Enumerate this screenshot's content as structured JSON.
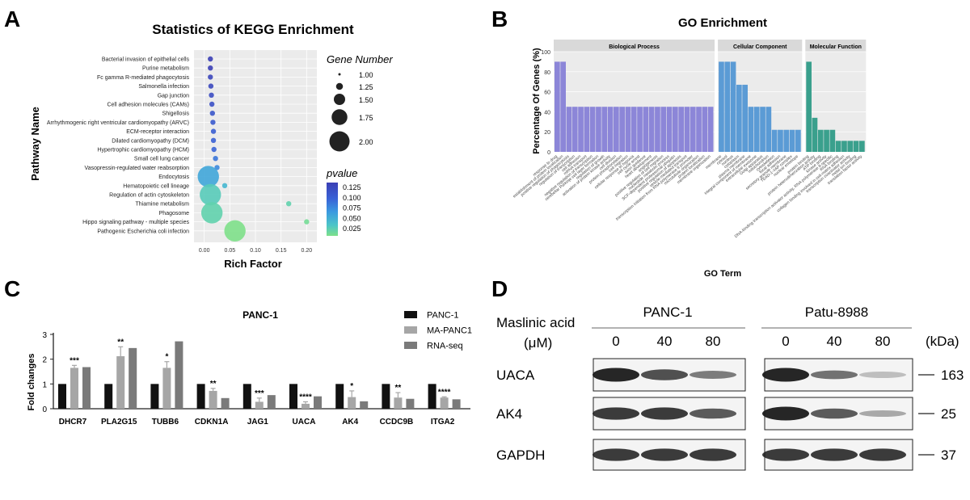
{
  "panels": {
    "a": "A",
    "b": "B",
    "c": "C",
    "d": "D"
  },
  "chart_data": [
    {
      "id": "kegg",
      "type": "scatter",
      "title": "Statistics of KEGG Enrichment",
      "xlabel": "Rich Factor",
      "ylabel": "Pathway Name",
      "xlim": [
        -0.02,
        0.22
      ],
      "xticks": [
        "0.00",
        "0.05",
        "0.10",
        "0.15",
        "0.20"
      ],
      "grid": true,
      "legend_position": "right",
      "size_legend": {
        "title": "Gene Number",
        "values": [
          1.0,
          1.25,
          1.5,
          1.75,
          2.0
        ],
        "labels": [
          "1.00",
          "1.25",
          "1.50",
          "1.75",
          "2.00"
        ]
      },
      "color_legend": {
        "title": "pvalue",
        "labels": [
          "0.125",
          "0.100",
          "0.075",
          "0.050",
          "0.025"
        ],
        "colors": [
          "#3b3fb5",
          "#3a62d6",
          "#3b9ae0",
          "#4cc5c8",
          "#7ee08a"
        ]
      },
      "pathways": [
        {
          "name": "Bacterial invasion of epithelial cells",
          "x": 0.012,
          "genes": 1,
          "p": 0.125
        },
        {
          "name": "Purine metabolism",
          "x": 0.012,
          "genes": 1,
          "p": 0.125
        },
        {
          "name": "Fc gamma R-mediated phagocytosis",
          "x": 0.012,
          "genes": 1,
          "p": 0.12
        },
        {
          "name": "Salmonella infection",
          "x": 0.013,
          "genes": 1,
          "p": 0.118
        },
        {
          "name": "Gap junction",
          "x": 0.014,
          "genes": 1,
          "p": 0.115
        },
        {
          "name": "Cell adhesion molecules (CAMs)",
          "x": 0.015,
          "genes": 1,
          "p": 0.112
        },
        {
          "name": "Shigellosis",
          "x": 0.016,
          "genes": 1,
          "p": 0.108
        },
        {
          "name": "Arrhythmogenic right ventricular cardiomyopathy (ARVC)",
          "x": 0.017,
          "genes": 1,
          "p": 0.105
        },
        {
          "name": "ECM-receptor interaction",
          "x": 0.018,
          "genes": 1,
          "p": 0.102
        },
        {
          "name": "Dilated cardiomyopathy (DCM)",
          "x": 0.018,
          "genes": 1,
          "p": 0.1
        },
        {
          "name": "Hypertrophic cardiomyopathy (HCM)",
          "x": 0.019,
          "genes": 1,
          "p": 0.098
        },
        {
          "name": "Small cell lung cancer",
          "x": 0.022,
          "genes": 1,
          "p": 0.09
        },
        {
          "name": "Vasopressin-regulated water reabsorption",
          "x": 0.025,
          "genes": 1,
          "p": 0.08
        },
        {
          "name": "Endocytosis",
          "x": 0.008,
          "genes": 2,
          "p": 0.065
        },
        {
          "name": "Hematopoietic cell lineage",
          "x": 0.04,
          "genes": 1,
          "p": 0.055
        },
        {
          "name": "Regulation of actin cytoskeleton",
          "x": 0.012,
          "genes": 2,
          "p": 0.04
        },
        {
          "name": "Thiamine metabolism",
          "x": 0.165,
          "genes": 1,
          "p": 0.035
        },
        {
          "name": "Phagosome",
          "x": 0.015,
          "genes": 2,
          "p": 0.035
        },
        {
          "name": "Hippo signaling pathway - multiple species",
          "x": 0.2,
          "genes": 1,
          "p": 0.025
        },
        {
          "name": "Pathogenic Escherichia coli infection",
          "x": 0.06,
          "genes": 2,
          "p": 0.02
        }
      ]
    },
    {
      "id": "go",
      "type": "bar",
      "title": "GO Enrichment",
      "xlabel": "GO Term",
      "ylabel": "Percentage Of Genes (%)",
      "ylim": [
        0,
        100
      ],
      "yticks": [
        "0",
        "20",
        "40",
        "60",
        "80",
        "100"
      ],
      "facets": [
        {
          "name": "Biological Process",
          "color": "#8c86d8",
          "values": [
            90,
            90,
            45,
            45,
            45,
            45,
            45,
            45,
            45,
            45,
            45,
            45,
            45,
            45,
            45,
            45,
            45,
            45,
            45,
            45,
            45,
            45,
            45,
            45,
            45,
            45,
            45
          ],
          "terms": [
            "response to drug",
            "establishment of protein localization",
            "positive regulation of phagocytosis",
            "regulation of transcription",
            "cell adhesion",
            "mRNA transport",
            "negative regulation of transcription",
            "cerebellar Purkinje cell layer formation",
            "regulation of growth",
            "activation of protein kinase activity",
            "cell division",
            "protein phosphorylation",
            "cell migration",
            "cellular response to hypoxia",
            "cell cycle arrest",
            "axon guidance",
            "heart development",
            "angiogenesis",
            "positive regulation of cell migration",
            "nucleotide metabolic process",
            "SCF-dependent proteasomal ubiquitin",
            "positive regulation of apoptosis",
            "vesicle-mediated transport",
            "transcription initiation from RNA polymerase II promoter",
            "microtubule organization",
            "protein localization",
            "membrane organization"
          ]
        },
        {
          "name": "Cellular Component",
          "color": "#5b9bd5",
          "values": [
            90,
            90,
            90,
            67,
            67,
            45,
            45,
            45,
            45,
            22,
            22,
            22,
            22,
            22
          ],
          "terms": [
            "membrane",
            "cytosol",
            "nucleus",
            "cytoplasm",
            "plasma membrane",
            "integral component of membrane",
            "extracellular exosome",
            "Golgi apparatus",
            "mitochondrion",
            "cytoskeleton",
            "focal adhesion",
            "secretory granule membrane",
            "TEAD-1-YAP complex",
            "nuclear envelope"
          ]
        },
        {
          "name": "Molecular Function",
          "color": "#3aa08d",
          "values": [
            90,
            34,
            22,
            22,
            22,
            11,
            11,
            11,
            11,
            11
          ],
          "terms": [
            "protein binding",
            "protein heterodimerization activity",
            "ATP binding",
            "kinase activity",
            "DNA-binding transcription activator activity, RNA polymerase II-specific",
            "RNA binding",
            "collagen binding involved in cell-matrix adhesion",
            "transcription coactivator activity",
            "metal ion binding",
            "translation factor activity"
          ]
        }
      ]
    },
    {
      "id": "panc1",
      "type": "bar",
      "title": "PANC-1",
      "ylabel": "Fold changes",
      "ylim": [
        0,
        3
      ],
      "yticks": [
        "0",
        "1",
        "2",
        "3"
      ],
      "categories": [
        "DHCR7",
        "PLA2G15",
        "TUBB6",
        "CDKN1A",
        "JAG1",
        "UACA",
        "AK4",
        "CCDC9B",
        "ITGA2"
      ],
      "series": [
        {
          "name": "PANC-1",
          "color": "#111111",
          "values": [
            1,
            1,
            1,
            1,
            1,
            1,
            1,
            1,
            1
          ]
        },
        {
          "name": "MA-PANC1",
          "color": "#a6a6a6",
          "values": [
            1.65,
            2.12,
            1.65,
            0.72,
            0.28,
            0.2,
            0.47,
            0.45,
            0.45
          ],
          "errors": [
            0.1,
            0.38,
            0.25,
            0.1,
            0.15,
            0.08,
            0.25,
            0.2,
            0.03
          ]
        },
        {
          "name": "RNA-seq",
          "color": "#7a7a7a",
          "values": [
            1.68,
            2.45,
            2.72,
            0.43,
            0.55,
            0.5,
            0.3,
            0.4,
            0.38
          ]
        }
      ],
      "significance": [
        "***",
        "**",
        "*",
        "**",
        "***",
        "****",
        "*",
        "**",
        "****"
      ]
    },
    {
      "id": "western",
      "type": "table",
      "treatment_label_1": "Maslinic acid",
      "treatment_label_2": "(μM)",
      "cell_lines": [
        "PANC-1",
        "Patu-8988"
      ],
      "doses": [
        "0",
        "40",
        "80",
        "0",
        "40",
        "80"
      ],
      "kda_label": "(kDa)",
      "proteins": [
        {
          "name": "UACA",
          "kda": "163",
          "intensity": [
            0.95,
            0.75,
            0.55,
            0.95,
            0.6,
            0.25
          ]
        },
        {
          "name": "AK4",
          "kda": "25",
          "intensity": [
            0.85,
            0.85,
            0.7,
            0.95,
            0.7,
            0.35
          ]
        },
        {
          "name": "GAPDH",
          "kda": "37",
          "intensity": [
            0.85,
            0.85,
            0.85,
            0.85,
            0.85,
            0.85
          ]
        }
      ]
    }
  ]
}
